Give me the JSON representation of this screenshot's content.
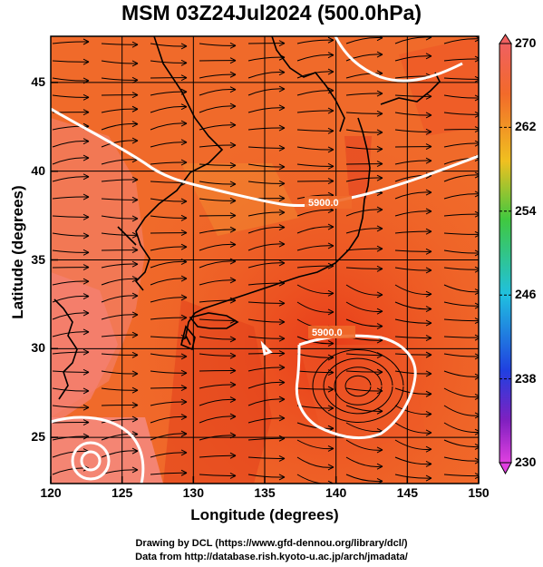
{
  "title": "MSM 03Z24Jul2024 (500.0hPa)",
  "x_axis": {
    "label": "Longitude (degrees)",
    "ticks": [
      "120",
      "125",
      "130",
      "135",
      "140",
      "145",
      "150"
    ],
    "range": [
      120,
      150
    ]
  },
  "y_axis": {
    "label": "Latitude  (degrees)",
    "ticks": [
      "25",
      "30",
      "35",
      "40",
      "45"
    ],
    "range": [
      22.4,
      47.6
    ]
  },
  "colorbar": {
    "ticks": [
      "270",
      "262",
      "254",
      "246",
      "238",
      "230"
    ],
    "range": [
      230,
      270
    ]
  },
  "contours": [
    {
      "label": "5900.0"
    },
    {
      "label": "5900.0"
    }
  ],
  "credits": {
    "line1": "Drawing by DCL (https://www.gfd-dennou.org/library/dcl/)",
    "line2": "Data from http://database.rish.kyoto-u.ac.jp/arch/jmadata/"
  },
  "colors": {
    "field_dominant": "#f06a2a",
    "field_warm": "#e8401f",
    "field_pale": "#f47e6a",
    "contour": "#ffffff",
    "stream": "#000000"
  }
}
